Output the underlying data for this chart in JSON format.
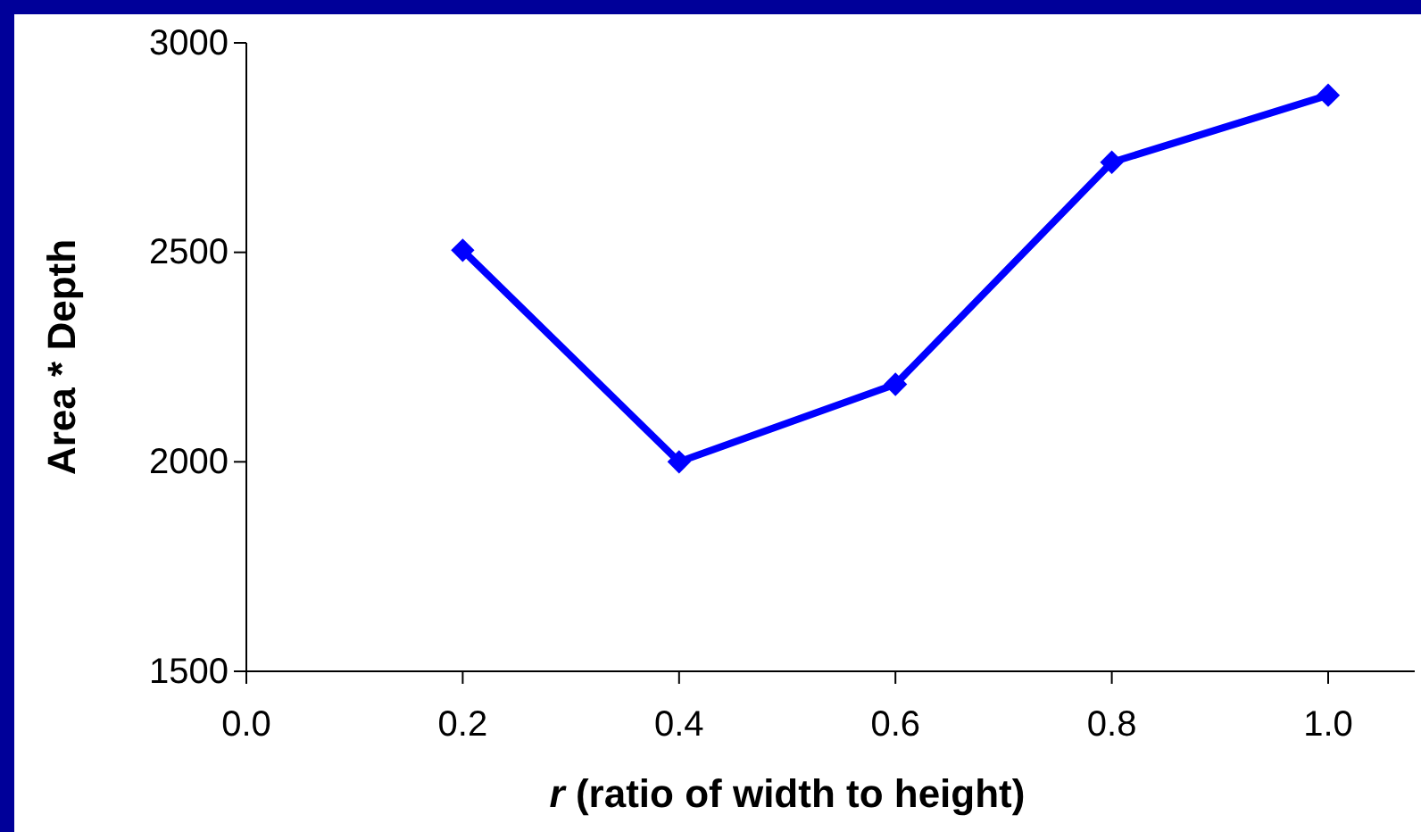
{
  "chart_data": {
    "type": "line",
    "xlabel": "r (ratio of width to height)",
    "ylabel": "Area * Depth",
    "x": [
      0.2,
      0.4,
      0.6,
      0.8,
      1.0
    ],
    "series": [
      {
        "color": "#0000ff",
        "values": [
          2505,
          2000,
          2185,
          2715,
          2875
        ]
      }
    ],
    "xlim": [
      0,
      1.08
    ],
    "xticks": [
      {
        "value": 0,
        "label": "0.0"
      },
      0.2,
      0.4,
      0.6,
      0.8,
      {
        "value": 1,
        "label": "1.0"
      }
    ],
    "ylim": [
      1500,
      3000
    ],
    "yticks": [
      1500,
      2000,
      2500,
      3000
    ],
    "grid": false,
    "marker": "diamond",
    "line_style": "solid"
  }
}
